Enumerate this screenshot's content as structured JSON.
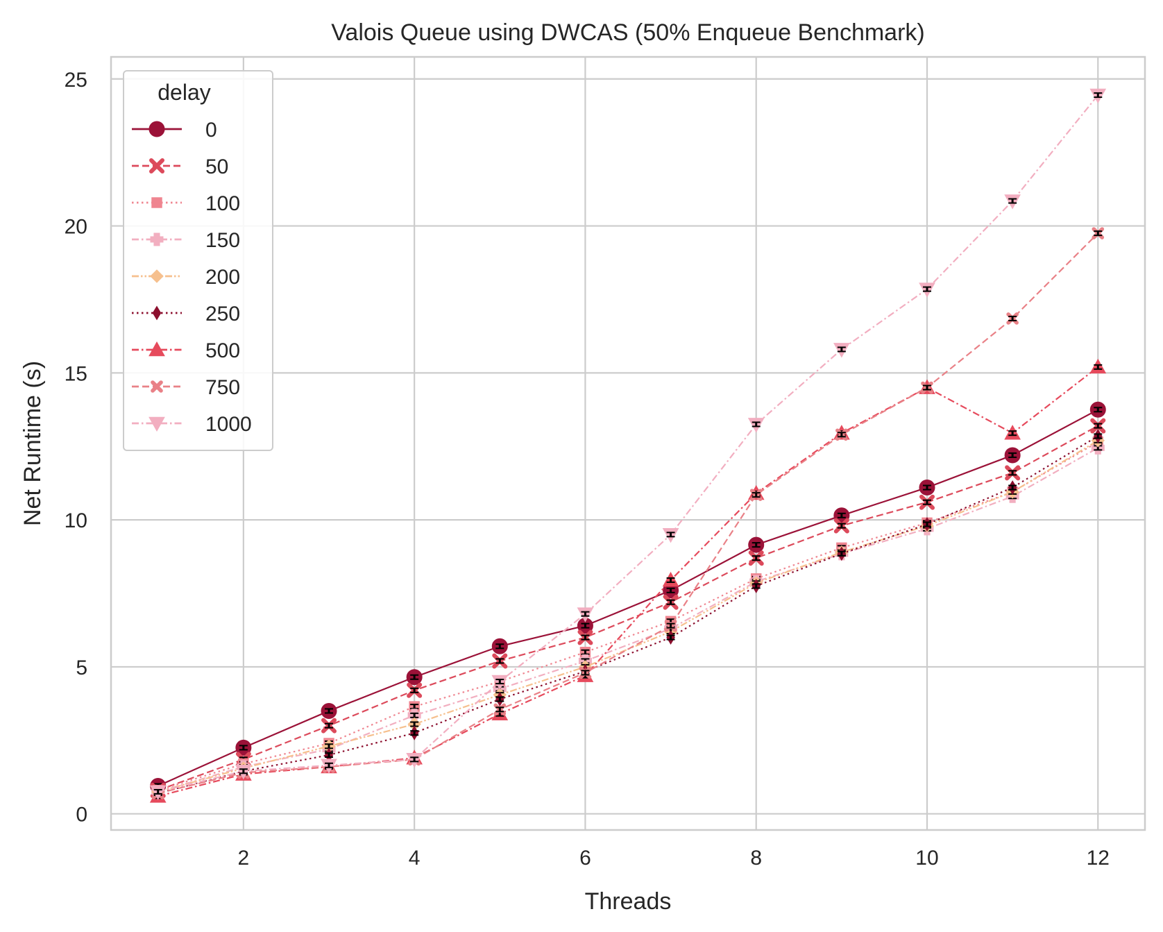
{
  "chart_data": {
    "type": "line",
    "title": "Valois Queue using DWCAS (50% Enqueue Benchmark)",
    "xlabel": "Threads",
    "ylabel": "Net Runtime (s)",
    "xlim": [
      0.45,
      12.55
    ],
    "ylim": [
      -0.55,
      25.75
    ],
    "xticks": [
      2,
      4,
      6,
      8,
      10,
      12
    ],
    "yticks": [
      0,
      5,
      10,
      15,
      20,
      25
    ],
    "grid": true,
    "legend": {
      "title": "delay",
      "position": "top-left"
    },
    "x": [
      1,
      2,
      3,
      4,
      5,
      6,
      7,
      8,
      9,
      10,
      11,
      12
    ],
    "series": [
      {
        "name": "0",
        "color": "#9b1238",
        "marker": "circle",
        "dash": "solid",
        "values": [
          0.95,
          2.25,
          3.5,
          4.65,
          5.7,
          6.4,
          7.6,
          9.15,
          10.15,
          11.1,
          12.2,
          13.75
        ]
      },
      {
        "name": "50",
        "color": "#dc4a5b",
        "marker": "x",
        "dash": "dashed",
        "values": [
          0.8,
          1.85,
          3.0,
          4.2,
          5.2,
          6.0,
          7.2,
          8.7,
          9.8,
          10.6,
          11.6,
          13.2
        ]
      },
      {
        "name": "100",
        "color": "#ef8590",
        "marker": "square",
        "dash": "dotted",
        "values": [
          0.8,
          1.7,
          2.4,
          3.65,
          4.5,
          5.5,
          6.55,
          8.0,
          9.05,
          9.9,
          10.95,
          12.65
        ]
      },
      {
        "name": "150",
        "color": "#f2afc0",
        "marker": "plus",
        "dash": "dashdot",
        "values": [
          0.75,
          1.6,
          2.2,
          3.35,
          4.25,
          5.2,
          6.3,
          7.9,
          8.85,
          9.7,
          10.8,
          12.45
        ]
      },
      {
        "name": "200",
        "color": "#f6c08e",
        "marker": "diamond",
        "dash": "dashdotdot",
        "values": [
          0.75,
          1.55,
          2.3,
          3.05,
          4.05,
          5.0,
          6.2,
          7.85,
          8.9,
          9.8,
          10.95,
          12.7
        ]
      },
      {
        "name": "250",
        "color": "#8c0f2e",
        "marker": "thin-diamond",
        "dash": "dotted",
        "values": [
          0.7,
          1.45,
          2.0,
          2.75,
          3.9,
          4.85,
          6.0,
          7.75,
          8.85,
          9.85,
          11.1,
          12.85
        ]
      },
      {
        "name": "500",
        "color": "#e64a5c",
        "marker": "triangle-up",
        "dash": "dashdot",
        "values": [
          0.6,
          1.35,
          1.6,
          1.9,
          3.4,
          4.7,
          7.95,
          10.9,
          12.95,
          14.5,
          12.95,
          15.2
        ]
      },
      {
        "name": "750",
        "color": "#e98187",
        "marker": "x-small",
        "dash": "dashed",
        "values": [
          0.7,
          1.4,
          1.6,
          1.85,
          3.55,
          4.8,
          6.4,
          10.85,
          12.9,
          14.5,
          16.85,
          19.75
        ]
      },
      {
        "name": "1000",
        "color": "#f2aec0",
        "marker": "triangle-down",
        "dash": "dashdot",
        "values": [
          0.75,
          1.45,
          1.65,
          1.85,
          4.5,
          6.8,
          9.5,
          13.25,
          15.8,
          17.85,
          20.85,
          24.45
        ]
      }
    ]
  }
}
